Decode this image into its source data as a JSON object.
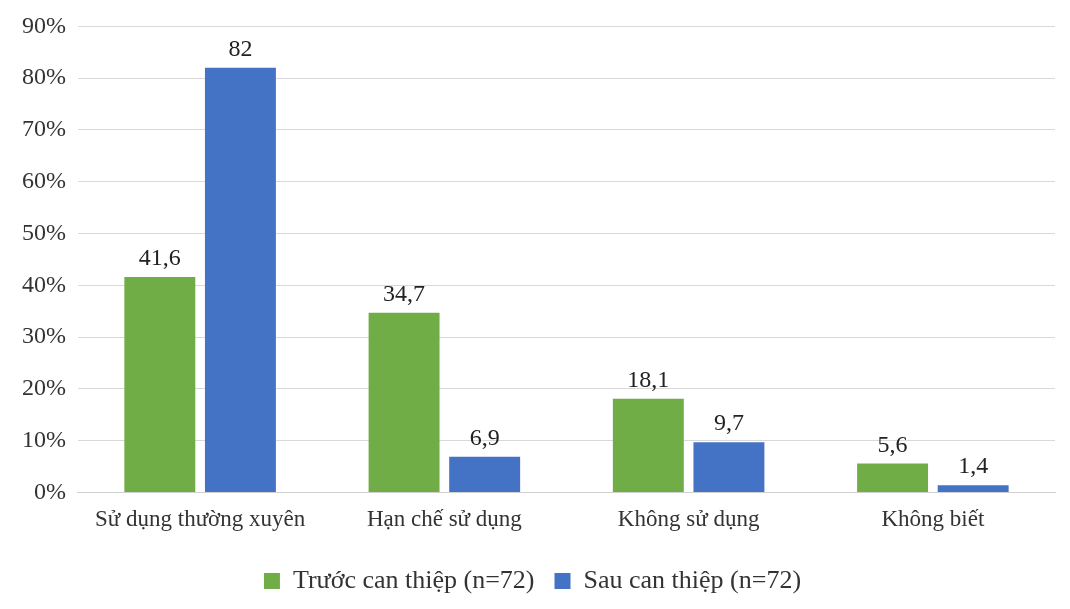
{
  "chart_data": {
    "type": "bar",
    "categories": [
      "Sử dụng thường xuyên",
      "Hạn chế sử dụng",
      "Không sử dụng",
      "Không biết"
    ],
    "series": [
      {
        "name": "Trước can thiệp (n=72)",
        "color": "#70ad47",
        "values": [
          41.6,
          34.7,
          18.1,
          5.6
        ],
        "value_labels": [
          "41,6",
          "34,7",
          "18,1",
          "5,6"
        ]
      },
      {
        "name": "Sau can thiệp (n=72)",
        "color": "#4472c4",
        "values": [
          82,
          6.9,
          9.7,
          1.4
        ],
        "value_labels": [
          "82",
          "6,9",
          "9,7",
          "1,4"
        ]
      }
    ],
    "ylim": [
      0,
      90
    ],
    "yticks": [
      {
        "value": 0,
        "label": "0%"
      },
      {
        "value": 10,
        "label": "10%"
      },
      {
        "value": 20,
        "label": "20%"
      },
      {
        "value": 30,
        "label": "30%"
      },
      {
        "value": 40,
        "label": "40%"
      },
      {
        "value": 50,
        "label": "50%"
      },
      {
        "value": 60,
        "label": "60%"
      },
      {
        "value": 70,
        "label": "70%"
      },
      {
        "value": 80,
        "label": "80%"
      },
      {
        "value": 90,
        "label": "90%"
      }
    ],
    "grid": "y",
    "legend": "bottom"
  }
}
